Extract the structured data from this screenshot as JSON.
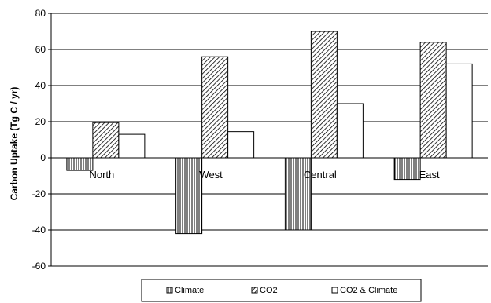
{
  "chart_data": {
    "type": "bar",
    "title": "",
    "xlabel": "",
    "ylabel": "Carbon Uptake (Tg C / yr)",
    "ylim": [
      -60,
      80
    ],
    "yticks": [
      -60,
      -40,
      -20,
      0,
      20,
      40,
      60,
      80
    ],
    "grid": true,
    "legend_position": "bottom",
    "categories": [
      "North",
      "West",
      "Central",
      "East"
    ],
    "series": [
      {
        "name": "Climate",
        "pattern": "vertical-lines",
        "values": [
          -7,
          -42,
          -40,
          -12
        ]
      },
      {
        "name": "CO2",
        "pattern": "diagonal-hatch",
        "values": [
          19.5,
          56,
          70,
          64
        ]
      },
      {
        "name": "CO2 & Climate",
        "pattern": "solid-white",
        "values": [
          13,
          14.5,
          30,
          52
        ]
      }
    ]
  }
}
